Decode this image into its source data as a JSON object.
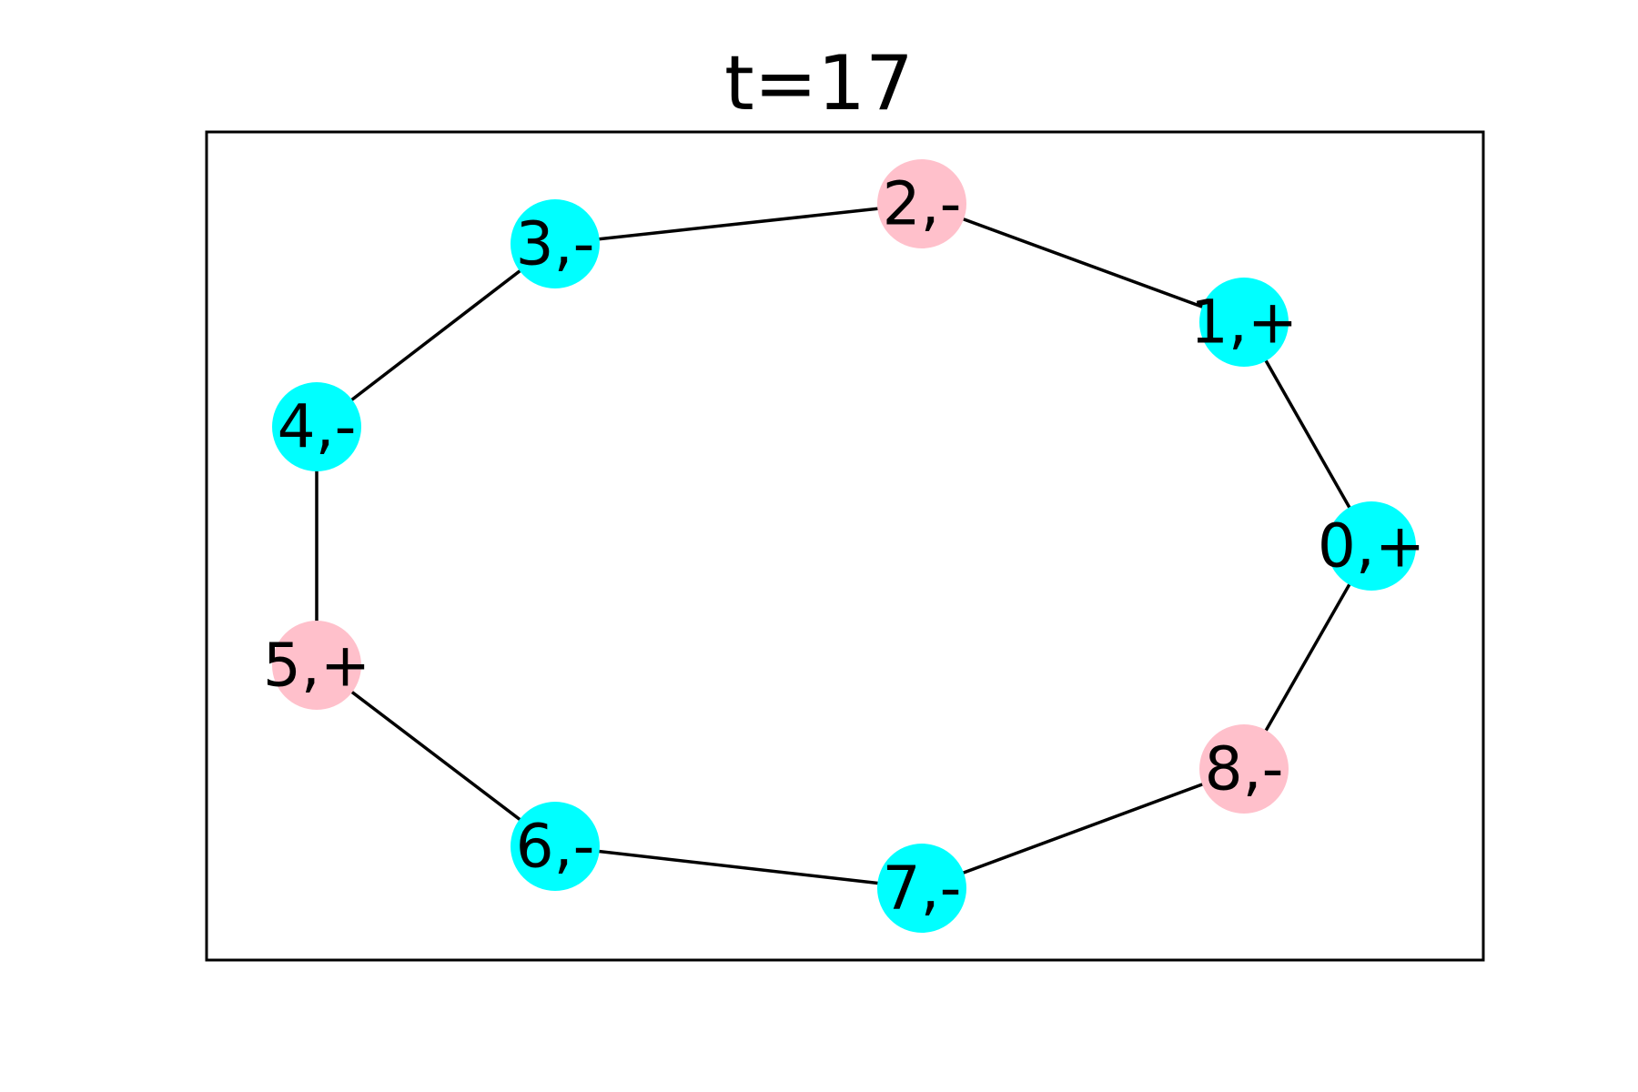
{
  "title": "t=17",
  "colors": {
    "cyan": "#00ffff",
    "pink": "#ffc0cb",
    "edge": "#000000",
    "frame": "#000000"
  },
  "nodes": [
    {
      "id": "0",
      "label": "0,+",
      "color": "cyan"
    },
    {
      "id": "1",
      "label": "1,+",
      "color": "cyan"
    },
    {
      "id": "2",
      "label": "2,-",
      "color": "pink"
    },
    {
      "id": "3",
      "label": "3,-",
      "color": "cyan"
    },
    {
      "id": "4",
      "label": "4,-",
      "color": "cyan"
    },
    {
      "id": "5",
      "label": "5,+",
      "color": "pink"
    },
    {
      "id": "6",
      "label": "6,-",
      "color": "cyan"
    },
    {
      "id": "7",
      "label": "7,-",
      "color": "cyan"
    },
    {
      "id": "8",
      "label": "8,-",
      "color": "pink"
    }
  ],
  "edges": [
    [
      "0",
      "1"
    ],
    [
      "1",
      "2"
    ],
    [
      "2",
      "3"
    ],
    [
      "3",
      "4"
    ],
    [
      "4",
      "5"
    ],
    [
      "5",
      "6"
    ],
    [
      "6",
      "7"
    ],
    [
      "7",
      "8"
    ],
    [
      "8",
      "0"
    ]
  ]
}
